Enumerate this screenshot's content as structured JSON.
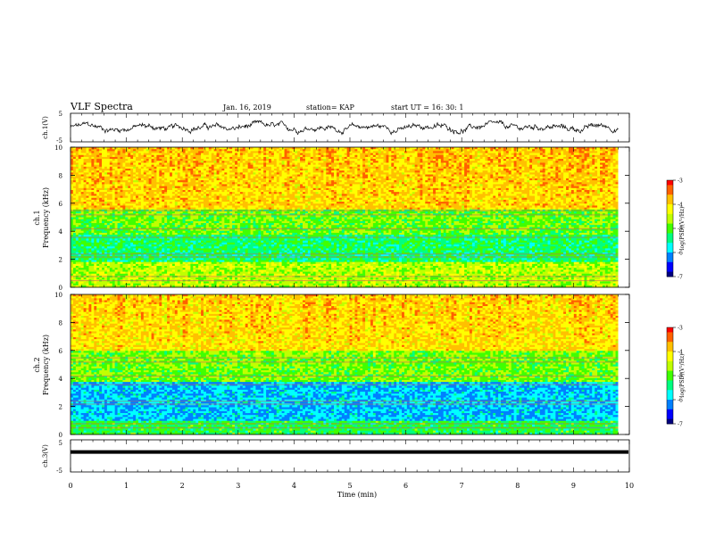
{
  "header": {
    "title": "VLF Spectra",
    "date": "Jan. 16, 2019",
    "station": "station= KAP",
    "start": "start  UT  =   16: 30: 1"
  },
  "colors": {
    "colormap": [
      "#000080",
      "#0000ff",
      "#0080ff",
      "#00ffff",
      "#00ff80",
      "#40ff00",
      "#c0ff00",
      "#ffff00",
      "#ffc000",
      "#ff6000",
      "#ff0000"
    ],
    "trace": "#000000",
    "axis": "#000000"
  },
  "chart_data": [
    {
      "type": "line",
      "name": "ch1-waveform",
      "ylabel": "ch.1(V)",
      "ylim": [
        -5,
        5
      ],
      "yticks": [
        "5",
        "-5"
      ],
      "x_range": [
        0,
        10
      ],
      "data_extent_min": 9.8,
      "description_values": "noisy signal approximately within [-2, 2] V"
    },
    {
      "type": "heatmap",
      "name": "ch1-spectrogram",
      "ylabel_line1": "ch.1",
      "ylabel_line2": "Frequency  (kHz)",
      "ylim": [
        0,
        10
      ],
      "yticks": [
        "0",
        "2",
        "4",
        "6",
        "8",
        "10"
      ],
      "x_range": [
        0,
        10
      ],
      "data_extent_min": 9.8,
      "colorbar": {
        "label": "log(PSD)(V²/Hz)",
        "range": [
          -7,
          -3
        ],
        "ticks": [
          "-3",
          "-4",
          "-5",
          "-6",
          "-7"
        ]
      }
    },
    {
      "type": "heatmap",
      "name": "ch2-spectrogram",
      "ylabel_line1": "ch.2",
      "ylabel_line2": "Frequency  (kHz)",
      "ylim": [
        0,
        10
      ],
      "yticks": [
        "0",
        "2",
        "4",
        "6",
        "8",
        "10"
      ],
      "x_range": [
        0,
        10
      ],
      "data_extent_min": 9.8,
      "colorbar": {
        "label": "log(PSD)(V²/Hz)",
        "range": [
          -7,
          -3
        ],
        "ticks": [
          "-3",
          "-4",
          "-5",
          "-6",
          "-7"
        ]
      }
    },
    {
      "type": "line",
      "name": "ch3-waveform",
      "ylabel": "ch.3(V)",
      "ylim": [
        -5,
        5
      ],
      "yticks": [
        "5",
        "-5"
      ],
      "x_range": [
        0,
        10
      ],
      "constant_value": 1.2
    }
  ],
  "xaxis": {
    "label": "Time  (min)",
    "ticks": [
      "0",
      "1",
      "2",
      "3",
      "4",
      "5",
      "6",
      "7",
      "8",
      "9",
      "10"
    ],
    "range": [
      0,
      10
    ]
  }
}
